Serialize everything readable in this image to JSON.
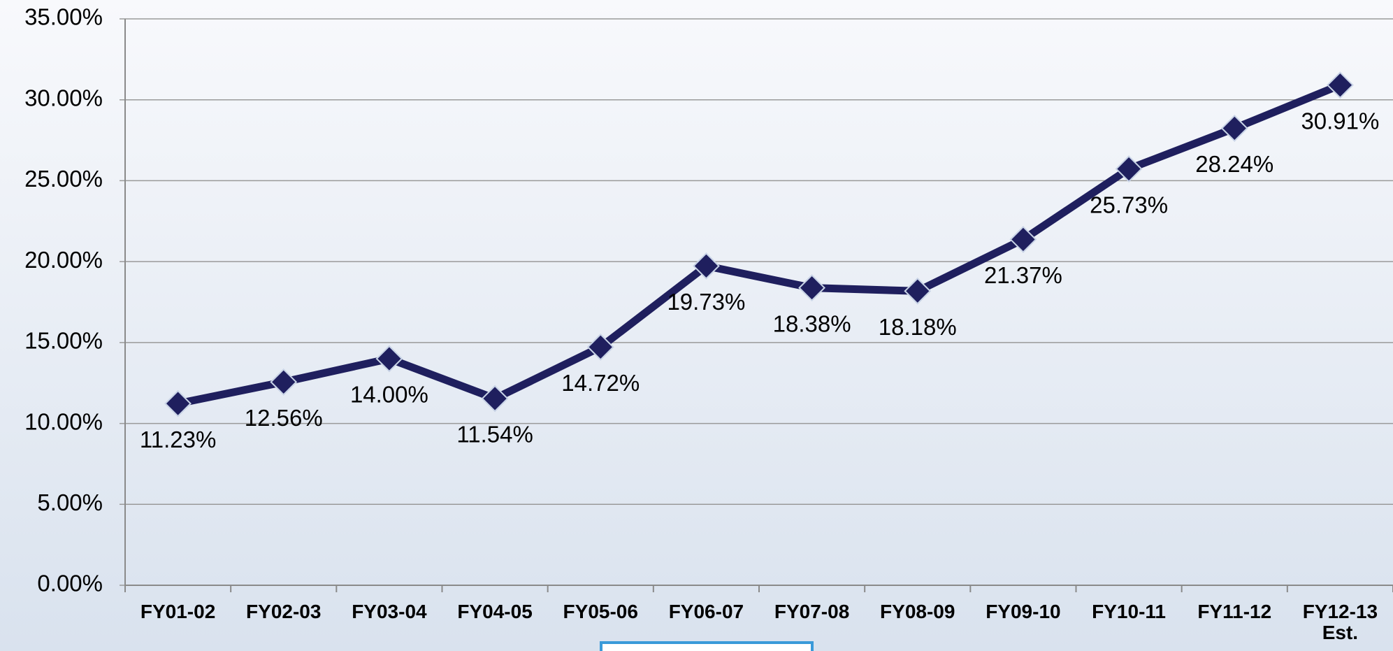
{
  "chart_data": {
    "type": "line",
    "categories": [
      "FY01-02",
      "FY02-03",
      "FY03-04",
      "FY04-05",
      "FY05-06",
      "FY06-07",
      "FY07-08",
      "FY08-09",
      "FY09-10",
      "FY10-11",
      "FY11-12",
      "FY12-13 Est."
    ],
    "series": [
      {
        "color": "#1f1f5e",
        "values": [
          11.23,
          12.56,
          14.0,
          11.54,
          14.72,
          19.73,
          18.38,
          18.18,
          21.37,
          25.73,
          28.24,
          30.91
        ],
        "value_labels": [
          "11.23%",
          "12.56%",
          "14.00%",
          "11.54%",
          "14.72%",
          "19.73%",
          "18.38%",
          "18.18%",
          "21.37%",
          "25.73%",
          "28.24%",
          "30.91%"
        ]
      }
    ],
    "ylim": [
      0,
      35
    ],
    "yticks": [
      {
        "value": 0,
        "label": "0.00%"
      },
      {
        "value": 5,
        "label": "5.00%"
      },
      {
        "value": 10,
        "label": "10.00%"
      },
      {
        "value": 15,
        "label": "15.00%"
      },
      {
        "value": 20,
        "label": "20.00%"
      },
      {
        "value": 25,
        "label": "25.00%"
      },
      {
        "value": 30,
        "label": "30.00%"
      },
      {
        "value": 35,
        "label": "35.00%"
      }
    ],
    "grid": true
  }
}
